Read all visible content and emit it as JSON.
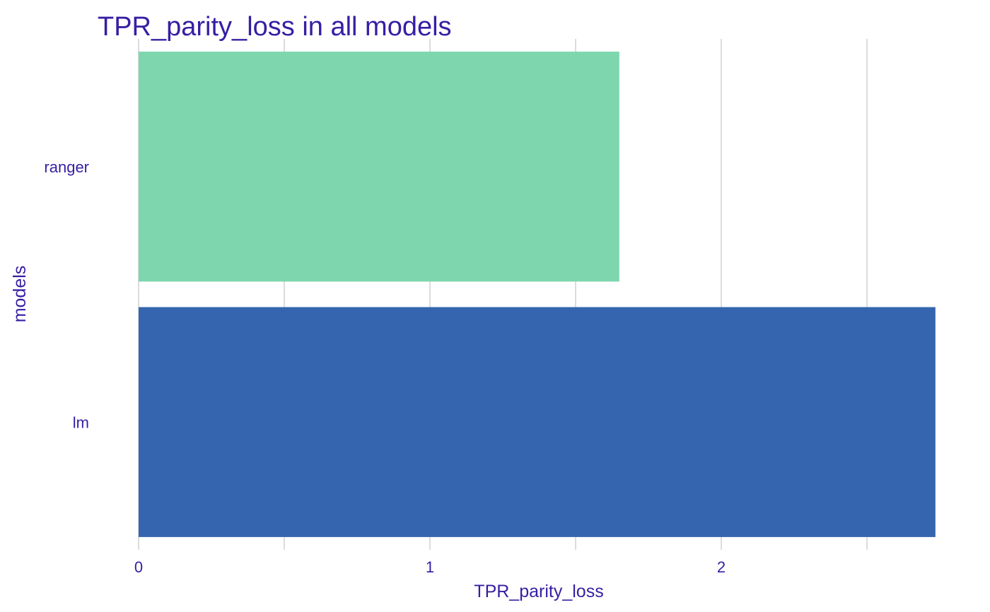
{
  "chart_data": {
    "type": "bar",
    "orientation": "horizontal",
    "title": "TPR_parity_loss in all models",
    "xlabel": "TPR_parity_loss",
    "ylabel": "models",
    "categories": [
      "ranger",
      "lm"
    ],
    "values": [
      1.65,
      2.735
    ],
    "colors": [
      "#7dd6ae",
      "#3565af"
    ],
    "xlim": [
      0,
      2.75
    ],
    "xticks": [
      0,
      1,
      2
    ],
    "xtick_labels": [
      "0",
      "1",
      "2"
    ],
    "minor_xticks": [
      0.5,
      1.5,
      2.5
    ],
    "grid": "vertical",
    "legend": "none"
  }
}
